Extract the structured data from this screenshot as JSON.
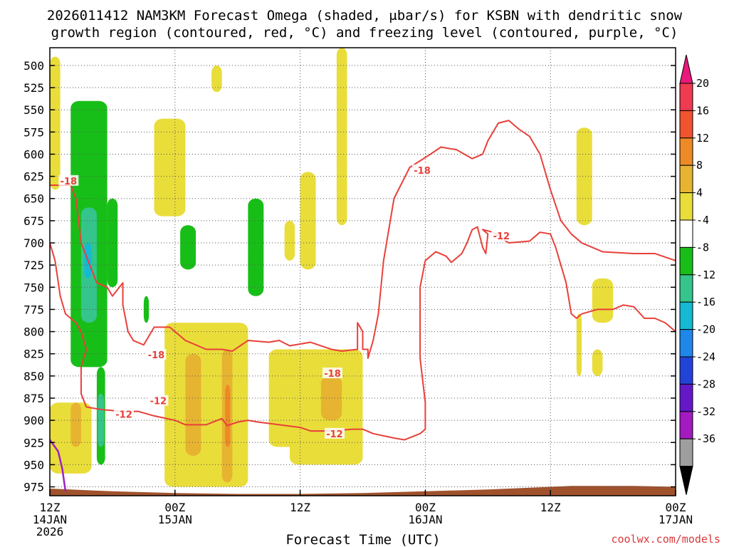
{
  "chart_data": {
    "type": "heatmap",
    "title_line1": "2026011412 NAM3KM Forecast Omega (shaded, μbar/s) for KSBN with dendritic snow",
    "title_line2": "growth region (contoured, red, °C) and freezing level (contoured, purple, °C)",
    "xlabel": "Forecast Time (UTC)",
    "ylabel": "",
    "credit": "coolwx.com/models",
    "ylim": [
      985,
      480
    ],
    "xlim": [
      0,
      60
    ],
    "x_ticks": [
      {
        "value": 0,
        "label1": "12Z",
        "label2": "14JAN",
        "label3": "2026"
      },
      {
        "value": 12,
        "label1": "00Z",
        "label2": "15JAN",
        "label3": ""
      },
      {
        "value": 24,
        "label1": "12Z",
        "label2": "",
        "label3": ""
      },
      {
        "value": 36,
        "label1": "00Z",
        "label2": "16JAN",
        "label3": ""
      },
      {
        "value": 48,
        "label1": "12Z",
        "label2": "",
        "label3": ""
      },
      {
        "value": 60,
        "label1": "00Z",
        "label2": "17JAN",
        "label3": ""
      }
    ],
    "y_ticks": [
      500,
      525,
      550,
      575,
      600,
      625,
      650,
      675,
      700,
      725,
      750,
      775,
      800,
      825,
      850,
      875,
      900,
      925,
      950,
      975
    ],
    "colorbar": {
      "labels": [
        "20",
        "16",
        "12",
        "8",
        "4",
        "-4",
        "-8",
        "-12",
        "-16",
        "-20",
        "-24",
        "-28",
        "-32",
        "-36"
      ],
      "colors": [
        "#ef3a50",
        "#f0542e",
        "#ee8a26",
        "#e6b431",
        "#e9dd3a",
        "#ffffff",
        "#18be18",
        "#35c48c",
        "#15b9d3",
        "#1f86ea",
        "#2243d8",
        "#6418c8",
        "#a31ac0",
        "#9e9e9e"
      ],
      "top_color": "#e8197a",
      "bottom_color": "#000000"
    },
    "shaded_regions": [
      {
        "name": "ascent-weak",
        "color": "#e9dd3a",
        "cells": [
          [
            0,
            1,
            490,
            640
          ],
          [
            10,
            13,
            560,
            670
          ],
          [
            15.5,
            16.5,
            500,
            530
          ],
          [
            11,
            19,
            790,
            975
          ],
          [
            22.5,
            23.5,
            675,
            720
          ],
          [
            24,
            25.5,
            620,
            730
          ],
          [
            27.5,
            28.5,
            480,
            680
          ],
          [
            21,
            24,
            820,
            930
          ],
          [
            23,
            30,
            820,
            950
          ],
          [
            15.5,
            17,
            930,
            975
          ],
          [
            50.5,
            52,
            570,
            680
          ],
          [
            50.5,
            51,
            780,
            850
          ],
          [
            52,
            53,
            820,
            850
          ],
          [
            52,
            54,
            740,
            790
          ],
          [
            0,
            4,
            880,
            960
          ]
        ]
      },
      {
        "name": "ascent-moderate",
        "color": "#e6b431",
        "cells": [
          [
            13,
            14.5,
            825,
            940
          ],
          [
            16.5,
            17.5,
            820,
            970
          ],
          [
            26,
            28,
            850,
            900
          ],
          [
            2,
            3,
            880,
            930
          ]
        ]
      },
      {
        "name": "ascent-strong",
        "color": "#ee8a26",
        "cells": [
          [
            16.8,
            17.3,
            860,
            930
          ]
        ]
      },
      {
        "name": "descent-weak",
        "color": "#18be18",
        "cells": [
          [
            2,
            5.5,
            540,
            840
          ],
          [
            5.5,
            6.5,
            650,
            750
          ],
          [
            12.5,
            14,
            680,
            730
          ],
          [
            19,
            20.5,
            650,
            760
          ],
          [
            9,
            9.5,
            760,
            790
          ],
          [
            4.5,
            5.3,
            840,
            950
          ]
        ]
      },
      {
        "name": "descent-moderate",
        "color": "#35c48c",
        "cells": [
          [
            3,
            4.5,
            660,
            790
          ],
          [
            4.6,
            5.2,
            870,
            930
          ]
        ]
      },
      {
        "name": "descent-strong",
        "color": "#15b9d3",
        "cells": [
          [
            3.3,
            4,
            700,
            740
          ]
        ]
      }
    ],
    "contours": [
      {
        "name": "dgz-minus18",
        "value": -18,
        "color": "#e8403a",
        "label": "-18",
        "label_at": [
          [
            1.8,
            630
          ],
          [
            10.2,
            826
          ],
          [
            27.1,
            847
          ],
          [
            35.7,
            618
          ]
        ],
        "points": [
          [
            0,
            635
          ],
          [
            2,
            635
          ],
          [
            2.5,
            650
          ],
          [
            3,
            700
          ],
          [
            4.5,
            745
          ],
          [
            5.5,
            750
          ],
          [
            6,
            760
          ],
          [
            7,
            745
          ],
          [
            7,
            770
          ],
          [
            7.5,
            800
          ],
          [
            8,
            810
          ],
          [
            9,
            815
          ],
          [
            10,
            795
          ],
          [
            11.5,
            795
          ],
          [
            13,
            810
          ],
          [
            15,
            820
          ],
          [
            16.5,
            820
          ],
          [
            17.5,
            822
          ],
          [
            19,
            810
          ],
          [
            21,
            812
          ],
          [
            22,
            810
          ],
          [
            23,
            816
          ],
          [
            25,
            812
          ],
          [
            27,
            820
          ],
          [
            28,
            822
          ],
          [
            29.5,
            820
          ],
          [
            29.5,
            790
          ],
          [
            30,
            800
          ],
          [
            30,
            820
          ],
          [
            30.5,
            820
          ],
          [
            30.5,
            830
          ],
          [
            31,
            810
          ],
          [
            31.5,
            780
          ],
          [
            32,
            720
          ],
          [
            33,
            650
          ],
          [
            34.5,
            615
          ],
          [
            36.5,
            600
          ],
          [
            37.5,
            592
          ],
          [
            39,
            595
          ],
          [
            40.5,
            605
          ],
          [
            41.5,
            600
          ],
          [
            42,
            585
          ],
          [
            43,
            565
          ],
          [
            44,
            562
          ],
          [
            45,
            572
          ],
          [
            46,
            580
          ],
          [
            47,
            600
          ],
          [
            48,
            640
          ],
          [
            49,
            675
          ],
          [
            50,
            690
          ],
          [
            51,
            700
          ],
          [
            53,
            710
          ],
          [
            56,
            712
          ],
          [
            58,
            712
          ],
          [
            60,
            720
          ]
        ]
      },
      {
        "name": "dgz-minus12",
        "value": -12,
        "color": "#e8403a",
        "label": "-12",
        "label_at": [
          [
            7.1,
            893
          ],
          [
            27.3,
            915
          ],
          [
            43.3,
            692
          ],
          [
            10.4,
            878
          ]
        ],
        "points": [
          [
            0,
            700
          ],
          [
            0.5,
            720
          ],
          [
            1,
            760
          ],
          [
            1.5,
            780
          ],
          [
            2.5,
            790
          ],
          [
            3,
            800
          ],
          [
            3.5,
            820
          ],
          [
            3,
            840
          ],
          [
            3,
            870
          ],
          [
            3.5,
            885
          ],
          [
            5,
            888
          ],
          [
            7,
            890
          ],
          [
            8.5,
            890
          ],
          [
            10,
            895
          ],
          [
            12,
            900
          ],
          [
            13,
            905
          ],
          [
            15,
            905
          ],
          [
            16.5,
            898
          ],
          [
            17,
            906
          ],
          [
            18,
            902
          ],
          [
            19,
            900
          ],
          [
            20,
            902
          ],
          [
            22,
            905
          ],
          [
            24,
            908
          ],
          [
            25,
            912
          ],
          [
            27,
            912
          ],
          [
            29,
            910
          ],
          [
            30,
            910
          ],
          [
            31,
            915
          ],
          [
            33,
            920
          ],
          [
            34,
            922
          ],
          [
            35.5,
            915
          ],
          [
            36,
            910
          ],
          [
            36,
            880
          ],
          [
            35.5,
            830
          ],
          [
            35.5,
            750
          ],
          [
            36,
            720
          ],
          [
            37,
            710
          ],
          [
            38,
            715
          ],
          [
            38.5,
            722
          ],
          [
            39.5,
            712
          ],
          [
            40,
            700
          ],
          [
            40.5,
            685
          ],
          [
            41,
            682
          ],
          [
            41.5,
            705
          ],
          [
            41.8,
            712
          ],
          [
            42,
            690
          ],
          [
            41.5,
            685
          ],
          [
            42.5,
            688
          ],
          [
            44,
            700
          ],
          [
            46,
            698
          ],
          [
            47,
            688
          ],
          [
            48,
            690
          ],
          [
            48.5,
            705
          ],
          [
            49.5,
            745
          ],
          [
            50,
            780
          ],
          [
            50.5,
            785
          ],
          [
            51,
            780
          ],
          [
            52.5,
            775
          ],
          [
            54,
            775
          ],
          [
            55,
            770
          ],
          [
            56,
            772
          ],
          [
            57,
            785
          ],
          [
            58,
            785
          ],
          [
            59,
            790
          ],
          [
            60,
            800
          ]
        ]
      },
      {
        "name": "freezing-level",
        "value": 0,
        "color": "#9b22c6",
        "label": "",
        "points": [
          [
            0,
            922
          ],
          [
            0.8,
            935
          ],
          [
            1.2,
            955
          ],
          [
            1.5,
            980
          ]
        ]
      }
    ],
    "terrain": {
      "name": "ground",
      "color": "#a0522d",
      "points": [
        [
          0,
          977
        ],
        [
          6,
          980
        ],
        [
          12,
          982
        ],
        [
          18,
          983
        ],
        [
          24,
          983
        ],
        [
          30,
          982
        ],
        [
          36,
          980
        ],
        [
          42,
          978
        ],
        [
          46,
          976
        ],
        [
          50,
          974
        ],
        [
          56,
          974
        ],
        [
          60,
          975
        ]
      ]
    }
  }
}
